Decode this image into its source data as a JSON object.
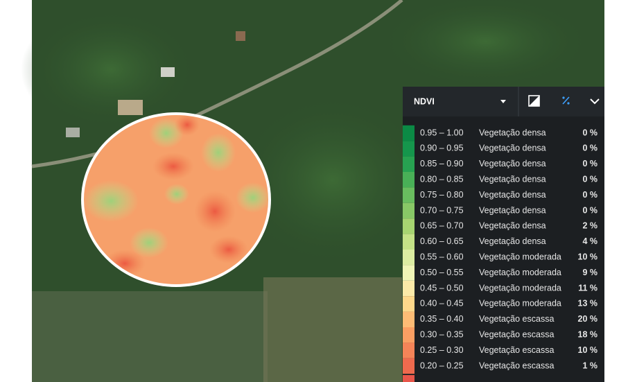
{
  "header": {
    "title": "NDVI"
  },
  "legend": {
    "rows": [
      {
        "range": "0.95 – 1.00",
        "label": "Vegetação densa",
        "percent": "0 %",
        "color": "#0b8a45"
      },
      {
        "range": "0.90 – 0.95",
        "label": "Vegetação densa",
        "percent": "0 %",
        "color": "#15964c"
      },
      {
        "range": "0.85 – 0.90",
        "label": "Vegetação densa",
        "percent": "0 %",
        "color": "#27a251"
      },
      {
        "range": "0.80 – 0.85",
        "label": "Vegetação densa",
        "percent": "0 %",
        "color": "#49b057"
      },
      {
        "range": "0.75 – 0.80",
        "label": "Vegetação densa",
        "percent": "0 %",
        "color": "#69bd5f"
      },
      {
        "range": "0.70 – 0.75",
        "label": "Vegetação densa",
        "percent": "0 %",
        "color": "#88c866"
      },
      {
        "range": "0.65 – 0.70",
        "label": "Vegetação densa",
        "percent": "2 %",
        "color": "#a7d571"
      },
      {
        "range": "0.60 – 0.65",
        "label": "Vegetação densa",
        "percent": "4 %",
        "color": "#c4e287"
      },
      {
        "range": "0.55 – 0.60",
        "label": "Vegetação moderada",
        "percent": "10 %",
        "color": "#dceda2"
      },
      {
        "range": "0.50 – 0.55",
        "label": "Vegetação moderada",
        "percent": "9 %",
        "color": "#eff5b6"
      },
      {
        "range": "0.45 – 0.50",
        "label": "Vegetação moderada",
        "percent": "11 %",
        "color": "#fbeaa8"
      },
      {
        "range": "0.40 – 0.45",
        "label": "Vegetação moderada",
        "percent": "13 %",
        "color": "#fdd88b"
      },
      {
        "range": "0.35 – 0.40",
        "label": "Vegetação escassa",
        "percent": "20 %",
        "color": "#fdbc75"
      },
      {
        "range": "0.30 – 0.35",
        "label": "Vegetação escassa",
        "percent": "18 %",
        "color": "#fa9f63"
      },
      {
        "range": "0.25 – 0.30",
        "label": "Vegetação escassa",
        "percent": "10 %",
        "color": "#f58458"
      },
      {
        "range": "0.20 – 0.25",
        "label": "Vegetação escassa",
        "percent": "1 %",
        "color": "#ee6a4e"
      }
    ]
  }
}
